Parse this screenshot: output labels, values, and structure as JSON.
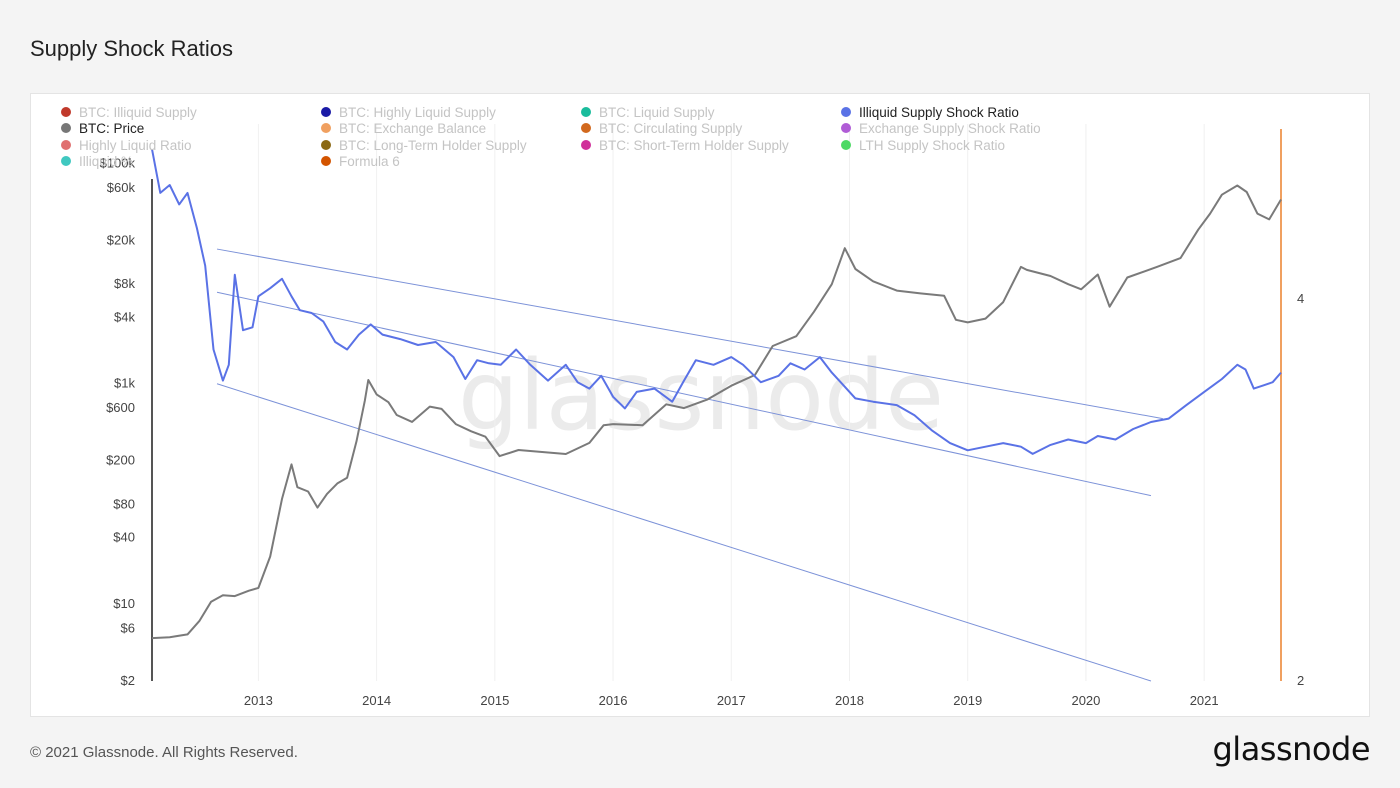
{
  "page": {
    "title": "Supply Shock Ratios",
    "footer_copyright": "© 2021 Glassnode. All Rights Reserved.",
    "footer_logo": "glassnode",
    "watermark": "glassnode"
  },
  "colors": {
    "price": "#7a7a7a",
    "ratio": "#5a72e6",
    "channel": "#7c92d8",
    "cursor": "#f0a060",
    "watermark": "#ebebeb"
  },
  "chart_data": {
    "type": "line",
    "title": "Supply Shock Ratios",
    "legend": [
      {
        "name": "BTC: Illiquid Supply",
        "color": "#c0392b",
        "active": false
      },
      {
        "name": "BTC: Highly Liquid Supply",
        "color": "#1a1aa6",
        "active": false
      },
      {
        "name": "BTC: Liquid Supply",
        "color": "#1abc9c",
        "active": false
      },
      {
        "name": "Illiquid Supply Shock Ratio",
        "color": "#5a72e6",
        "active": true
      },
      {
        "name": "BTC: Price",
        "color": "#777777",
        "active": true
      },
      {
        "name": "BTC: Exchange Balance",
        "color": "#f0a060",
        "active": false
      },
      {
        "name": "BTC: Circulating Supply",
        "color": "#d2691e",
        "active": false
      },
      {
        "name": "Exchange Supply Shock Ratio",
        "color": "#b05cd6",
        "active": false
      },
      {
        "name": "Highly Liquid Ratio",
        "color": "#e07070",
        "active": false
      },
      {
        "name": "BTC: Long-Term Holder Supply",
        "color": "#8b6914",
        "active": false
      },
      {
        "name": "BTC: Short-Term Holder Supply",
        "color": "#d0309a",
        "active": false
      },
      {
        "name": "LTH Supply Shock Ratio",
        "color": "#4cd964",
        "active": false
      },
      {
        "name": "Illiquid %",
        "color": "#40c8c0",
        "active": false
      },
      {
        "name": "Formula 6",
        "color": "#d35400",
        "active": false
      }
    ],
    "x_ticks": [
      "2013",
      "2014",
      "2015",
      "2016",
      "2017",
      "2018",
      "2019",
      "2020",
      "2021"
    ],
    "x_tick_values": [
      2013,
      2014,
      2015,
      2016,
      2017,
      2018,
      2019,
      2020,
      2021
    ],
    "xlim": [
      2012.1,
      2021.65
    ],
    "y_left": {
      "scale": "log",
      "ticks": [
        "$100k",
        "$60k",
        "$20k",
        "$8k",
        "$4k",
        "$1k",
        "$600",
        "$200",
        "$80",
        "$40",
        "$10",
        "$6",
        "$2"
      ],
      "tick_values": [
        100000,
        60000,
        20000,
        8000,
        4000,
        1000,
        600,
        200,
        80,
        40,
        10,
        6,
        2
      ],
      "ylim": [
        2,
        150000
      ]
    },
    "y_right": {
      "scale": "log",
      "ticks": [
        "4",
        "2"
      ],
      "tick_values": [
        4,
        2
      ],
      "ylim": [
        2,
        5.3
      ]
    },
    "series": [
      {
        "name": "BTC: Price",
        "axis": "left",
        "points": [
          [
            2012.1,
            4.9
          ],
          [
            2012.25,
            5.0
          ],
          [
            2012.4,
            5.3
          ],
          [
            2012.5,
            7.0
          ],
          [
            2012.6,
            10.5
          ],
          [
            2012.7,
            12.0
          ],
          [
            2012.8,
            11.8
          ],
          [
            2012.92,
            13.2
          ],
          [
            2013.0,
            14.0
          ],
          [
            2013.1,
            27.0
          ],
          [
            2013.2,
            90.0
          ],
          [
            2013.28,
            185.0
          ],
          [
            2013.33,
            115.0
          ],
          [
            2013.42,
            105.0
          ],
          [
            2013.5,
            75.0
          ],
          [
            2013.58,
            100.0
          ],
          [
            2013.67,
            125.0
          ],
          [
            2013.75,
            140.0
          ],
          [
            2013.83,
            300.0
          ],
          [
            2013.9,
            700.0
          ],
          [
            2013.93,
            1080.0
          ],
          [
            2014.0,
            800.0
          ],
          [
            2014.1,
            680.0
          ],
          [
            2014.17,
            520.0
          ],
          [
            2014.3,
            450.0
          ],
          [
            2014.45,
            620.0
          ],
          [
            2014.55,
            590.0
          ],
          [
            2014.67,
            430.0
          ],
          [
            2014.8,
            370.0
          ],
          [
            2014.92,
            330.0
          ],
          [
            2015.04,
            220.0
          ],
          [
            2015.2,
            250.0
          ],
          [
            2015.4,
            240.0
          ],
          [
            2015.6,
            230.0
          ],
          [
            2015.8,
            290.0
          ],
          [
            2015.92,
            420.0
          ],
          [
            2016.0,
            430.0
          ],
          [
            2016.25,
            420.0
          ],
          [
            2016.45,
            650.0
          ],
          [
            2016.6,
            600.0
          ],
          [
            2016.8,
            720.0
          ],
          [
            2017.0,
            960.0
          ],
          [
            2017.2,
            1200.0
          ],
          [
            2017.35,
            2200.0
          ],
          [
            2017.55,
            2700.0
          ],
          [
            2017.7,
            4500.0
          ],
          [
            2017.85,
            8000.0
          ],
          [
            2017.96,
            17000.0
          ],
          [
            2018.05,
            11000.0
          ],
          [
            2018.2,
            8500.0
          ],
          [
            2018.4,
            7000.0
          ],
          [
            2018.6,
            6600.0
          ],
          [
            2018.8,
            6300.0
          ],
          [
            2018.9,
            3800.0
          ],
          [
            2019.0,
            3600.0
          ],
          [
            2019.15,
            3900.0
          ],
          [
            2019.3,
            5500.0
          ],
          [
            2019.45,
            11500.0
          ],
          [
            2019.5,
            10800.0
          ],
          [
            2019.7,
            9500.0
          ],
          [
            2019.85,
            8000.0
          ],
          [
            2019.96,
            7200.0
          ],
          [
            2020.1,
            9800.0
          ],
          [
            2020.2,
            5000.0
          ],
          [
            2020.35,
            9200.0
          ],
          [
            2020.6,
            11500.0
          ],
          [
            2020.8,
            13800.0
          ],
          [
            2020.95,
            25000.0
          ],
          [
            2021.05,
            35000.0
          ],
          [
            2021.15,
            52000.0
          ],
          [
            2021.28,
            63000.0
          ],
          [
            2021.36,
            55000.0
          ],
          [
            2021.45,
            35000.0
          ],
          [
            2021.55,
            31000.0
          ],
          [
            2021.65,
            47000.0
          ]
        ]
      },
      {
        "name": "Illiquid Supply Shock Ratio",
        "axis": "right",
        "points": [
          [
            2012.1,
            5.25
          ],
          [
            2012.17,
            4.85
          ],
          [
            2012.25,
            4.92
          ],
          [
            2012.33,
            4.75
          ],
          [
            2012.4,
            4.85
          ],
          [
            2012.48,
            4.55
          ],
          [
            2012.55,
            4.25
          ],
          [
            2012.62,
            3.65
          ],
          [
            2012.7,
            3.45
          ],
          [
            2012.75,
            3.55
          ],
          [
            2012.8,
            4.18
          ],
          [
            2012.87,
            3.78
          ],
          [
            2012.95,
            3.8
          ],
          [
            2013.0,
            4.02
          ],
          [
            2013.1,
            4.08
          ],
          [
            2013.2,
            4.15
          ],
          [
            2013.28,
            4.02
          ],
          [
            2013.35,
            3.92
          ],
          [
            2013.45,
            3.9
          ],
          [
            2013.55,
            3.84
          ],
          [
            2013.65,
            3.7
          ],
          [
            2013.75,
            3.65
          ],
          [
            2013.85,
            3.75
          ],
          [
            2013.95,
            3.82
          ],
          [
            2014.05,
            3.75
          ],
          [
            2014.2,
            3.72
          ],
          [
            2014.35,
            3.68
          ],
          [
            2014.5,
            3.7
          ],
          [
            2014.65,
            3.6
          ],
          [
            2014.75,
            3.46
          ],
          [
            2014.85,
            3.58
          ],
          [
            2014.95,
            3.56
          ],
          [
            2015.05,
            3.55
          ],
          [
            2015.18,
            3.65
          ],
          [
            2015.3,
            3.55
          ],
          [
            2015.45,
            3.45
          ],
          [
            2015.6,
            3.55
          ],
          [
            2015.7,
            3.44
          ],
          [
            2015.8,
            3.4
          ],
          [
            2015.9,
            3.48
          ],
          [
            2016.0,
            3.35
          ],
          [
            2016.1,
            3.28
          ],
          [
            2016.2,
            3.38
          ],
          [
            2016.35,
            3.4
          ],
          [
            2016.5,
            3.32
          ],
          [
            2016.6,
            3.45
          ],
          [
            2016.7,
            3.58
          ],
          [
            2016.85,
            3.55
          ],
          [
            2017.0,
            3.6
          ],
          [
            2017.1,
            3.55
          ],
          [
            2017.25,
            3.44
          ],
          [
            2017.4,
            3.48
          ],
          [
            2017.5,
            3.56
          ],
          [
            2017.62,
            3.52
          ],
          [
            2017.75,
            3.6
          ],
          [
            2017.85,
            3.5
          ],
          [
            2017.95,
            3.42
          ],
          [
            2018.05,
            3.34
          ],
          [
            2018.2,
            3.32
          ],
          [
            2018.4,
            3.3
          ],
          [
            2018.55,
            3.24
          ],
          [
            2018.7,
            3.15
          ],
          [
            2018.85,
            3.08
          ],
          [
            2019.0,
            3.04
          ],
          [
            2019.15,
            3.06
          ],
          [
            2019.3,
            3.08
          ],
          [
            2019.45,
            3.06
          ],
          [
            2019.55,
            3.02
          ],
          [
            2019.7,
            3.07
          ],
          [
            2019.85,
            3.1
          ],
          [
            2020.0,
            3.08
          ],
          [
            2020.1,
            3.12
          ],
          [
            2020.25,
            3.1
          ],
          [
            2020.4,
            3.16
          ],
          [
            2020.55,
            3.2
          ],
          [
            2020.7,
            3.22
          ],
          [
            2020.85,
            3.3
          ],
          [
            2021.0,
            3.38
          ],
          [
            2021.15,
            3.46
          ],
          [
            2021.28,
            3.55
          ],
          [
            2021.35,
            3.52
          ],
          [
            2021.42,
            3.4
          ],
          [
            2021.5,
            3.42
          ],
          [
            2021.58,
            3.44
          ],
          [
            2021.65,
            3.5
          ]
        ]
      }
    ],
    "channel_lines": [
      {
        "axis": "right",
        "points": [
          [
            2012.65,
            4.38
          ],
          [
            2020.65,
            3.22
          ]
        ]
      },
      {
        "axis": "right",
        "points": [
          [
            2012.65,
            4.05
          ],
          [
            2020.55,
            2.8
          ]
        ]
      },
      {
        "axis": "right",
        "points": [
          [
            2012.65,
            3.43
          ],
          [
            2020.55,
            2.0
          ]
        ]
      }
    ],
    "cursor_x": 2021.65,
    "grid": {
      "vertical": true,
      "horizontal": false
    }
  }
}
